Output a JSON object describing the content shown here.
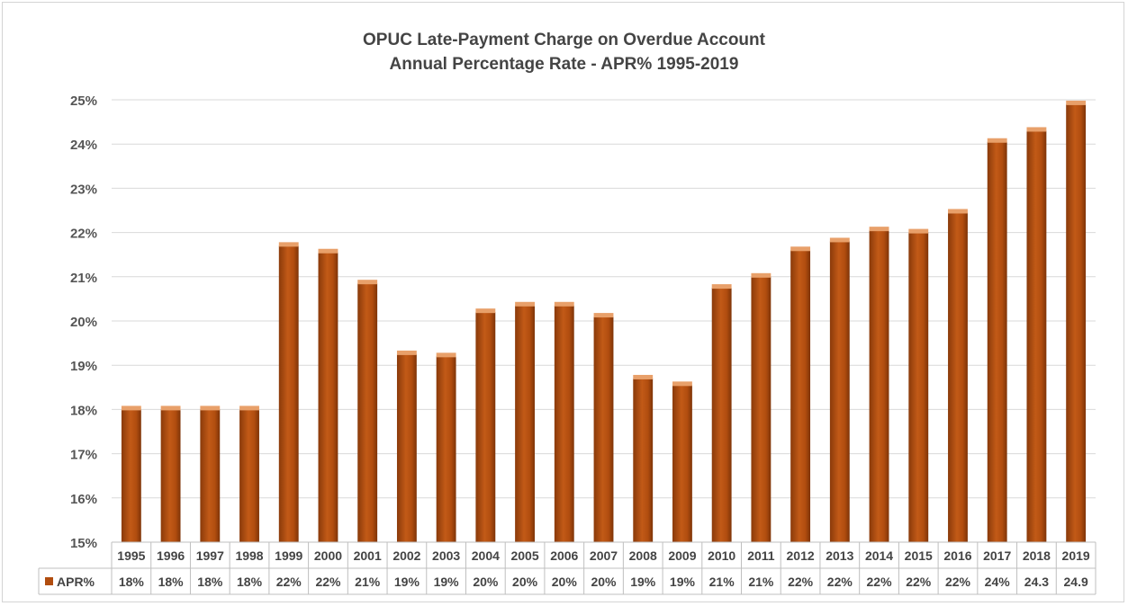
{
  "chart_data": {
    "type": "bar",
    "title": "OPUC Late-Payment Charge on Overdue Account",
    "subtitle": "Annual Percentage Rate - APR% 1995-2019",
    "categories": [
      "1995",
      "1996",
      "1997",
      "1998",
      "1999",
      "2000",
      "2001",
      "2002",
      "2003",
      "2004",
      "2005",
      "2006",
      "2007",
      "2008",
      "2009",
      "2010",
      "2011",
      "2012",
      "2013",
      "2014",
      "2015",
      "2016",
      "2017",
      "2018",
      "2019"
    ],
    "series": [
      {
        "name": "APR%",
        "values": [
          18,
          18,
          18,
          18,
          21.7,
          21.55,
          20.85,
          19.25,
          19.2,
          20.2,
          20.35,
          20.35,
          20.1,
          18.7,
          18.55,
          20.75,
          21,
          21.6,
          21.8,
          22.05,
          22,
          22.45,
          24.05,
          24.3,
          24.9
        ],
        "table_labels": [
          "18%",
          "18%",
          "18%",
          "18%",
          "22%",
          "22%",
          "21%",
          "19%",
          "19%",
          "20%",
          "20%",
          "20%",
          "20%",
          "19%",
          "19%",
          "21%",
          "21%",
          "22%",
          "22%",
          "22%",
          "22%",
          "22%",
          "24%",
          "24.3",
          "24.9"
        ]
      }
    ],
    "ylim": [
      15,
      25
    ],
    "yticks": [
      "15%",
      "16%",
      "17%",
      "18%",
      "19%",
      "20%",
      "21%",
      "22%",
      "23%",
      "24%",
      "25%"
    ],
    "grid": true,
    "legend": "data-table",
    "bar_color": "#b14d0f",
    "bar_highlight": "#e07b2b"
  }
}
